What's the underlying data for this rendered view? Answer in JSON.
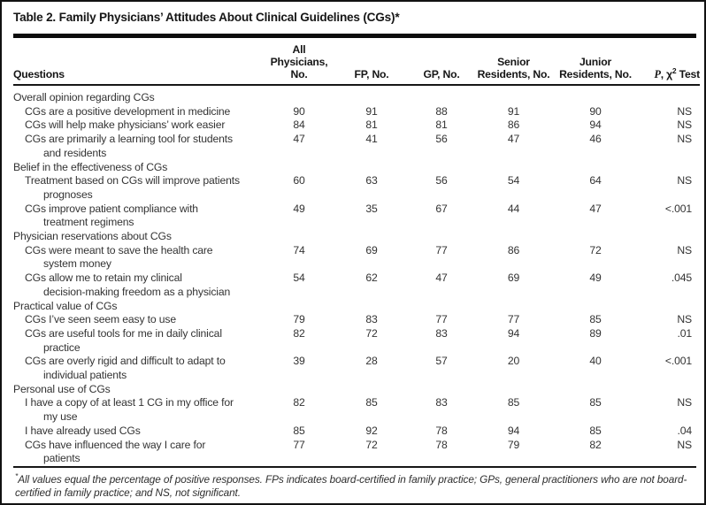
{
  "table": {
    "title": "Table 2. Family Physicians’ Attitudes About Clinical Guidelines (CGs)*",
    "columns": {
      "questions": "Questions",
      "all_physicians": "All Physicians, No.",
      "fp": "FP, No.",
      "gp": "GP, No.",
      "senior_line1": "Senior",
      "senior_line2": "Residents, No.",
      "junior_line1": "Junior",
      "junior_line2": "Residents, No.",
      "p_italic": "P",
      "p_chi": ", χ",
      "p_sup": "2",
      "p_test": " Test"
    },
    "rows": [
      {
        "type": "section",
        "text": "Overall opinion regarding CGs"
      },
      {
        "type": "question",
        "text": "CGs are a positive development in medicine",
        "text2": "",
        "values": [
          "90",
          "91",
          "88",
          "91",
          "90",
          "NS"
        ]
      },
      {
        "type": "question",
        "text": "CGs will help make physicians’ work easier",
        "text2": "",
        "values": [
          "84",
          "81",
          "81",
          "86",
          "94",
          "NS"
        ]
      },
      {
        "type": "question",
        "text": "CGs are primarily a learning tool for students",
        "text2": "and residents",
        "values": [
          "47",
          "41",
          "56",
          "47",
          "46",
          "NS"
        ]
      },
      {
        "type": "section",
        "text": "Belief in the effectiveness of CGs"
      },
      {
        "type": "question",
        "text": "Treatment based on CGs will improve patients",
        "text2": "prognoses",
        "values": [
          "60",
          "63",
          "56",
          "54",
          "64",
          "NS"
        ]
      },
      {
        "type": "question",
        "text": "CGs improve patient compliance with",
        "text2": "treatment regimens",
        "values": [
          "49",
          "35",
          "67",
          "44",
          "47",
          "<.001"
        ]
      },
      {
        "type": "section",
        "text": "Physician reservations about CGs"
      },
      {
        "type": "question",
        "text": "CGs were meant to save the health care",
        "text2": "system money",
        "values": [
          "74",
          "69",
          "77",
          "86",
          "72",
          "NS"
        ]
      },
      {
        "type": "question",
        "text": "CGs allow me to retain my clinical",
        "text2": "decision-making freedom as a physician",
        "values": [
          "54",
          "62",
          "47",
          "69",
          "49",
          ".045"
        ]
      },
      {
        "type": "section",
        "text": "Practical value of CGs"
      },
      {
        "type": "question",
        "text": "CGs I’ve seen seem easy to use",
        "text2": "",
        "values": [
          "79",
          "83",
          "77",
          "77",
          "85",
          "NS"
        ]
      },
      {
        "type": "question",
        "text": "CGs are useful tools for me in daily clinical",
        "text2": "practice",
        "values": [
          "82",
          "72",
          "83",
          "94",
          "89",
          ".01"
        ]
      },
      {
        "type": "question",
        "text": "CGs are overly rigid and difficult to adapt to",
        "text2": "individual patients",
        "values": [
          "39",
          "28",
          "57",
          "20",
          "40",
          "<.001"
        ]
      },
      {
        "type": "section",
        "text": "Personal use of CGs"
      },
      {
        "type": "question",
        "text": "I have a copy of at least 1 CG in my office for",
        "text2": "my use",
        "values": [
          "82",
          "85",
          "83",
          "85",
          "85",
          "NS"
        ]
      },
      {
        "type": "question",
        "text": "I have already used CGs",
        "text2": "",
        "values": [
          "85",
          "92",
          "78",
          "94",
          "85",
          ".04"
        ]
      },
      {
        "type": "question",
        "text": "CGs have influenced the way I care for",
        "text2": "patients",
        "values": [
          "77",
          "72",
          "78",
          "79",
          "82",
          "NS"
        ]
      }
    ],
    "footnote": {
      "star": "*",
      "text": "All values equal the percentage of positive responses. FPs indicates board-certified in family practice; GPs, general practitioners who are not board-certified in family practice; and NS, not significant."
    }
  }
}
